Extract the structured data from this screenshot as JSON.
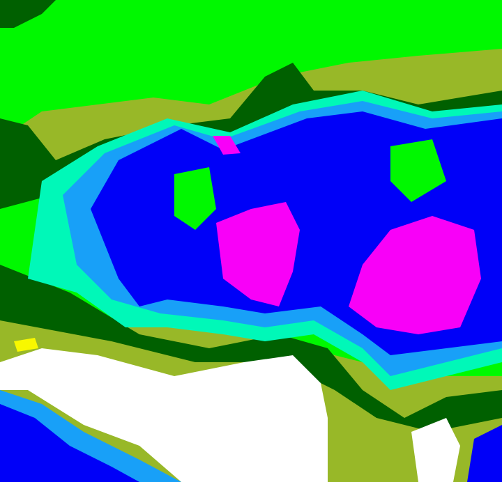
{
  "image": {
    "kind": "false-color enhanced satellite cloud image",
    "palette": {
      "bright_green": "#00f800",
      "dark_green": "#006000",
      "olive": "#98b828",
      "aquamarine": "#00f8b8",
      "light_blue": "#18a0f8",
      "blue": "#0000f8",
      "magenta": "#f800f8",
      "white": "#ffffff",
      "yellow": "#f8f800"
    }
  }
}
